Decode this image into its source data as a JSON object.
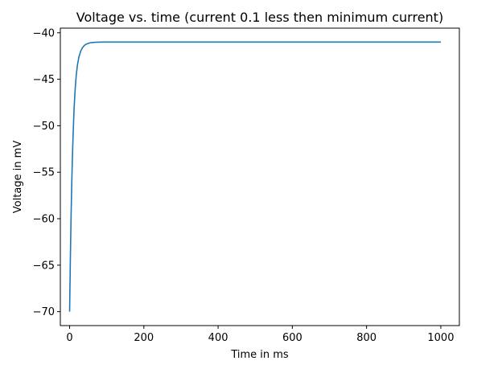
{
  "chart_data": {
    "type": "line",
    "title": "Voltage vs. time (current 0.1 less then minimum current)",
    "xlabel": "Time in ms",
    "ylabel": "Voltage in mV",
    "xlim": [
      -25,
      1050
    ],
    "ylim": [
      -71.5,
      -39.5
    ],
    "xticks": [
      0,
      200,
      400,
      600,
      800,
      1000
    ],
    "yticks": [
      -70,
      -65,
      -60,
      -55,
      -50,
      -45,
      -40
    ],
    "xtick_labels": [
      "0",
      "200",
      "400",
      "600",
      "800",
      "1000"
    ],
    "ytick_labels": [
      "−70",
      "−65",
      "−60",
      "−55",
      "−50",
      "−45",
      "−40"
    ],
    "grid": false,
    "legend": "none",
    "series": [
      {
        "color": "#1f77b4",
        "x": [
          0,
          2,
          4,
          6,
          8,
          10,
          12,
          15,
          18,
          21,
          25,
          30,
          35,
          40,
          45,
          50,
          55,
          60,
          70,
          80,
          90,
          100,
          150,
          200,
          300,
          400,
          500,
          600,
          700,
          800,
          900,
          1000
        ],
        "y": [
          -70,
          -64.3,
          -59.6,
          -55.8,
          -52.7,
          -50.3,
          -48.2,
          -46.0,
          -44.5,
          -43.5,
          -42.6,
          -41.96,
          -41.58,
          -41.35,
          -41.22,
          -41.14,
          -41.08,
          -41.05,
          -41.02,
          -41.01,
          -41.0,
          -41.0,
          -41.0,
          -41.0,
          -41.0,
          -41.0,
          -41.0,
          -41.0,
          -41.0,
          -41.0,
          -41.0,
          -41.0
        ]
      }
    ]
  }
}
